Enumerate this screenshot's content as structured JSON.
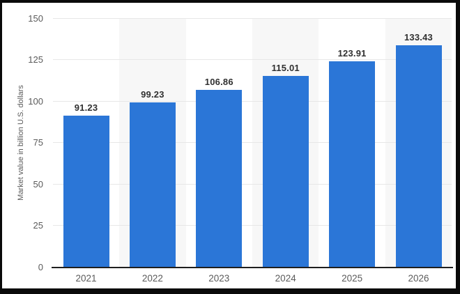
{
  "chart_data": {
    "type": "bar",
    "title": "",
    "categories": [
      "2021",
      "2022",
      "2023",
      "2024",
      "2025",
      "2026"
    ],
    "values": [
      91.23,
      99.23,
      106.86,
      115.01,
      123.91,
      133.43
    ],
    "value_labels": [
      "91.23",
      "99.23",
      "106.86",
      "115.01",
      "123.91",
      "133.43"
    ],
    "ylabel": "Market value in billion U.S. dollars",
    "xlabel": "",
    "yticks": [
      0,
      25,
      50,
      75,
      100,
      125,
      150
    ],
    "ylim": [
      0,
      150
    ],
    "grid": true,
    "legend": false,
    "plot_band_columns": [
      "2022",
      "2024",
      "2026"
    ],
    "colors": {
      "bar": "#2b76d7",
      "plot_band": "#f7f7f7",
      "gridline": "#e7e7e7",
      "axis_line": "#1f1f1f",
      "tick_label": "#5a5a5a",
      "category_label": "#5a5a5a",
      "value_label": "#303030",
      "background": "#ffffff",
      "frame": "#000000"
    }
  }
}
